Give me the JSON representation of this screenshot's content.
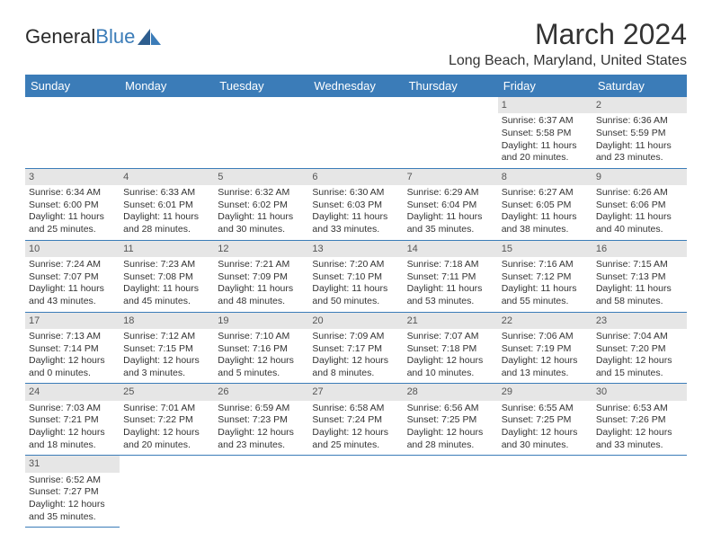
{
  "logo": {
    "text1": "General",
    "text2": "Blue"
  },
  "title": "March 2024",
  "location": "Long Beach, Maryland, United States",
  "colors": {
    "header_bg": "#3b7cb8",
    "header_text": "#ffffff",
    "daynum_bg": "#e6e6e6",
    "border": "#3b7cb8"
  },
  "weekdays": [
    "Sunday",
    "Monday",
    "Tuesday",
    "Wednesday",
    "Thursday",
    "Friday",
    "Saturday"
  ],
  "weeks": [
    [
      null,
      null,
      null,
      null,
      null,
      {
        "n": "1",
        "sr": "6:37 AM",
        "ss": "5:58 PM",
        "dl": "11 hours and 20 minutes."
      },
      {
        "n": "2",
        "sr": "6:36 AM",
        "ss": "5:59 PM",
        "dl": "11 hours and 23 minutes."
      }
    ],
    [
      {
        "n": "3",
        "sr": "6:34 AM",
        "ss": "6:00 PM",
        "dl": "11 hours and 25 minutes."
      },
      {
        "n": "4",
        "sr": "6:33 AM",
        "ss": "6:01 PM",
        "dl": "11 hours and 28 minutes."
      },
      {
        "n": "5",
        "sr": "6:32 AM",
        "ss": "6:02 PM",
        "dl": "11 hours and 30 minutes."
      },
      {
        "n": "6",
        "sr": "6:30 AM",
        "ss": "6:03 PM",
        "dl": "11 hours and 33 minutes."
      },
      {
        "n": "7",
        "sr": "6:29 AM",
        "ss": "6:04 PM",
        "dl": "11 hours and 35 minutes."
      },
      {
        "n": "8",
        "sr": "6:27 AM",
        "ss": "6:05 PM",
        "dl": "11 hours and 38 minutes."
      },
      {
        "n": "9",
        "sr": "6:26 AM",
        "ss": "6:06 PM",
        "dl": "11 hours and 40 minutes."
      }
    ],
    [
      {
        "n": "10",
        "sr": "7:24 AM",
        "ss": "7:07 PM",
        "dl": "11 hours and 43 minutes."
      },
      {
        "n": "11",
        "sr": "7:23 AM",
        "ss": "7:08 PM",
        "dl": "11 hours and 45 minutes."
      },
      {
        "n": "12",
        "sr": "7:21 AM",
        "ss": "7:09 PM",
        "dl": "11 hours and 48 minutes."
      },
      {
        "n": "13",
        "sr": "7:20 AM",
        "ss": "7:10 PM",
        "dl": "11 hours and 50 minutes."
      },
      {
        "n": "14",
        "sr": "7:18 AM",
        "ss": "7:11 PM",
        "dl": "11 hours and 53 minutes."
      },
      {
        "n": "15",
        "sr": "7:16 AM",
        "ss": "7:12 PM",
        "dl": "11 hours and 55 minutes."
      },
      {
        "n": "16",
        "sr": "7:15 AM",
        "ss": "7:13 PM",
        "dl": "11 hours and 58 minutes."
      }
    ],
    [
      {
        "n": "17",
        "sr": "7:13 AM",
        "ss": "7:14 PM",
        "dl": "12 hours and 0 minutes."
      },
      {
        "n": "18",
        "sr": "7:12 AM",
        "ss": "7:15 PM",
        "dl": "12 hours and 3 minutes."
      },
      {
        "n": "19",
        "sr": "7:10 AM",
        "ss": "7:16 PM",
        "dl": "12 hours and 5 minutes."
      },
      {
        "n": "20",
        "sr": "7:09 AM",
        "ss": "7:17 PM",
        "dl": "12 hours and 8 minutes."
      },
      {
        "n": "21",
        "sr": "7:07 AM",
        "ss": "7:18 PM",
        "dl": "12 hours and 10 minutes."
      },
      {
        "n": "22",
        "sr": "7:06 AM",
        "ss": "7:19 PM",
        "dl": "12 hours and 13 minutes."
      },
      {
        "n": "23",
        "sr": "7:04 AM",
        "ss": "7:20 PM",
        "dl": "12 hours and 15 minutes."
      }
    ],
    [
      {
        "n": "24",
        "sr": "7:03 AM",
        "ss": "7:21 PM",
        "dl": "12 hours and 18 minutes."
      },
      {
        "n": "25",
        "sr": "7:01 AM",
        "ss": "7:22 PM",
        "dl": "12 hours and 20 minutes."
      },
      {
        "n": "26",
        "sr": "6:59 AM",
        "ss": "7:23 PM",
        "dl": "12 hours and 23 minutes."
      },
      {
        "n": "27",
        "sr": "6:58 AM",
        "ss": "7:24 PM",
        "dl": "12 hours and 25 minutes."
      },
      {
        "n": "28",
        "sr": "6:56 AM",
        "ss": "7:25 PM",
        "dl": "12 hours and 28 minutes."
      },
      {
        "n": "29",
        "sr": "6:55 AM",
        "ss": "7:25 PM",
        "dl": "12 hours and 30 minutes."
      },
      {
        "n": "30",
        "sr": "6:53 AM",
        "ss": "7:26 PM",
        "dl": "12 hours and 33 minutes."
      }
    ],
    [
      {
        "n": "31",
        "sr": "6:52 AM",
        "ss": "7:27 PM",
        "dl": "12 hours and 35 minutes."
      },
      null,
      null,
      null,
      null,
      null,
      null
    ]
  ],
  "labels": {
    "sunrise": "Sunrise: ",
    "sunset": "Sunset: ",
    "daylight": "Daylight: "
  }
}
